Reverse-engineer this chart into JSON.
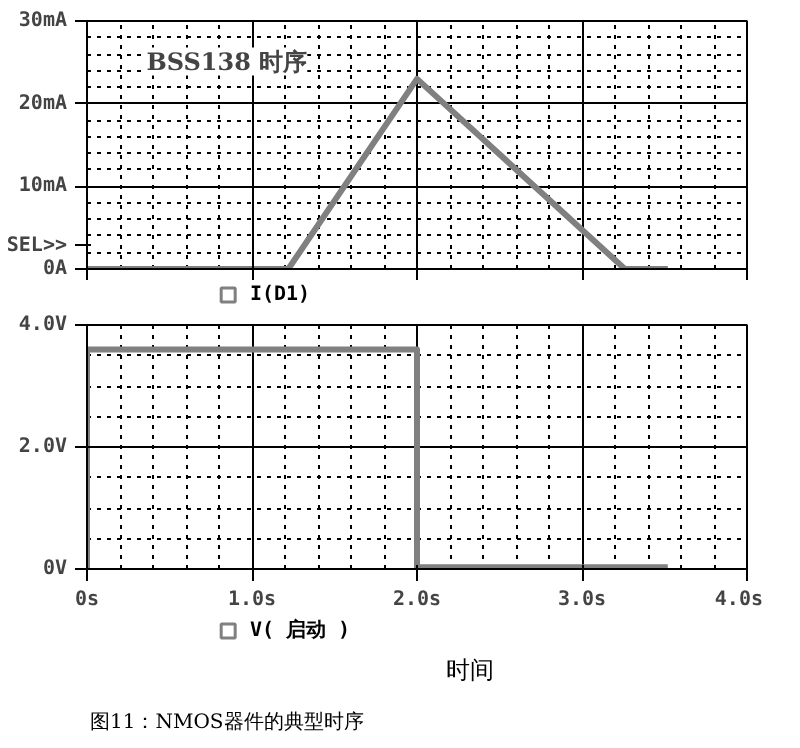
{
  "chart_data": [
    {
      "type": "line",
      "title": "BSS138 时序",
      "annotations": [
        "SEL>>"
      ],
      "series": [
        {
          "name": "I(D1)",
          "color": "#808080",
          "x": [
            0,
            1.22,
            2.0,
            3.26,
            3.52
          ],
          "values": [
            0,
            0,
            23,
            0,
            0
          ]
        }
      ],
      "xlim": [
        0,
        4
      ],
      "xticks": [
        {
          "value": 0,
          "label": null
        },
        {
          "value": 1,
          "label": null
        },
        {
          "value": 2,
          "label": null
        },
        {
          "value": 3,
          "label": null
        },
        {
          "value": 4,
          "label": null
        }
      ],
      "ylim": [
        0,
        30
      ],
      "yticks": [
        {
          "value": 0,
          "label": "0A"
        },
        {
          "value": 10,
          "label": "10mA"
        },
        {
          "value": 20,
          "label": "20mA"
        },
        {
          "value": 30,
          "label": "30mA"
        }
      ],
      "tick_labels": "y",
      "grid": true,
      "legend": "bottom left"
    },
    {
      "type": "line",
      "xlabel": "时间",
      "annotations": [
        "图11：NMOS器件的典型时序"
      ],
      "series": [
        {
          "name": "V( 启动 )",
          "color": "#808080",
          "x": [
            0,
            0,
            2.0,
            2.0,
            3.52
          ],
          "values": [
            0,
            3.6,
            3.6,
            0.03,
            0.03
          ]
        }
      ],
      "xlim": [
        0,
        4
      ],
      "xticks": [
        {
          "value": 0,
          "label": "0s"
        },
        {
          "value": 1,
          "label": "1.0s"
        },
        {
          "value": 2,
          "label": "2.0s"
        },
        {
          "value": 3,
          "label": "3.0s"
        },
        {
          "value": 4,
          "label": "4.0s"
        }
      ],
      "ylim": [
        0,
        4
      ],
      "yticks": [
        {
          "value": 0,
          "label": "0V"
        },
        {
          "value": 2,
          "label": "2.0V"
        },
        {
          "value": 4,
          "label": "4.0V"
        }
      ],
      "grid": true,
      "legend": "bottom left"
    }
  ]
}
